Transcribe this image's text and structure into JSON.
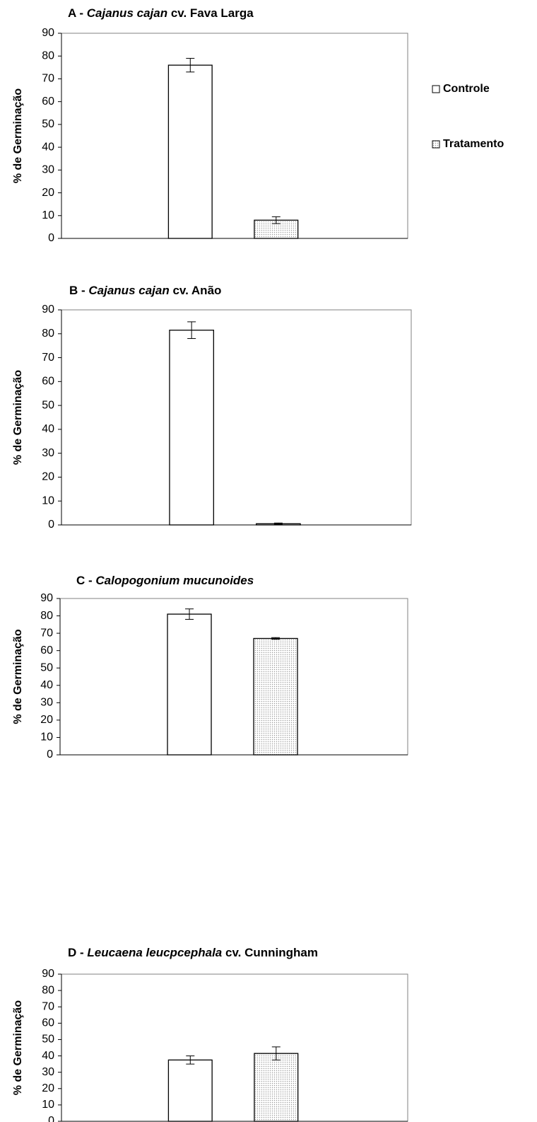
{
  "chart_data": [
    {
      "type": "bar",
      "title_parts": [
        "A - ",
        "Cajanus cajan",
        " cv. Fava Larga"
      ],
      "y_label": "% de Germinação",
      "ylim": [
        0,
        90
      ],
      "yticks": [
        0,
        10,
        20,
        30,
        40,
        50,
        60,
        70,
        80,
        90
      ],
      "series": [
        {
          "name": "Controle",
          "color": "#ffffff",
          "values": [
            76
          ],
          "errors": [
            3
          ]
        },
        {
          "name": "Tratamento",
          "color": "#9a9a9a",
          "pattern": "dots",
          "values": [
            8
          ],
          "errors": [
            1.5
          ]
        }
      ]
    },
    {
      "type": "bar",
      "title_parts": [
        "B - ",
        "Cajanus cajan",
        " cv. Anão"
      ],
      "y_label": "% de Germinação",
      "ylim": [
        0,
        90
      ],
      "yticks": [
        0,
        10,
        20,
        30,
        40,
        50,
        60,
        70,
        80,
        90
      ],
      "series": [
        {
          "color": "#ffffff",
          "values": [
            81.5
          ],
          "errors": [
            3.5
          ]
        },
        {
          "color": "#9a9a9a",
          "pattern": "dots",
          "values": [
            0.5
          ],
          "errors": [
            0.3
          ]
        }
      ]
    },
    {
      "type": "bar",
      "title_parts": [
        "C - ",
        "Calopogonium mucunoides"
      ],
      "y_label": "% de Germinação",
      "ylim": [
        0,
        90
      ],
      "yticks": [
        0,
        10,
        20,
        30,
        40,
        50,
        60,
        70,
        80,
        90
      ],
      "series": [
        {
          "color": "#ffffff",
          "values": [
            81
          ],
          "errors": [
            3
          ]
        },
        {
          "color": "#9a9a9a",
          "pattern": "dots",
          "values": [
            67
          ],
          "errors": [
            0.5
          ]
        }
      ]
    },
    {
      "type": "bar",
      "title_parts": [
        "D - ",
        "Leucaena leucpcephala",
        " cv. Cunningham"
      ],
      "y_label": "% de Germinação",
      "ylim": [
        0,
        90
      ],
      "yticks": [
        0,
        10,
        20,
        30,
        40,
        50,
        60,
        70,
        80,
        90
      ],
      "series": [
        {
          "color": "#ffffff",
          "values": [
            37.5
          ],
          "errors": [
            2.5
          ]
        },
        {
          "color": "#9a9a9a",
          "pattern": "dots",
          "values": [
            41.5
          ],
          "errors": [
            4
          ]
        }
      ]
    }
  ]
}
